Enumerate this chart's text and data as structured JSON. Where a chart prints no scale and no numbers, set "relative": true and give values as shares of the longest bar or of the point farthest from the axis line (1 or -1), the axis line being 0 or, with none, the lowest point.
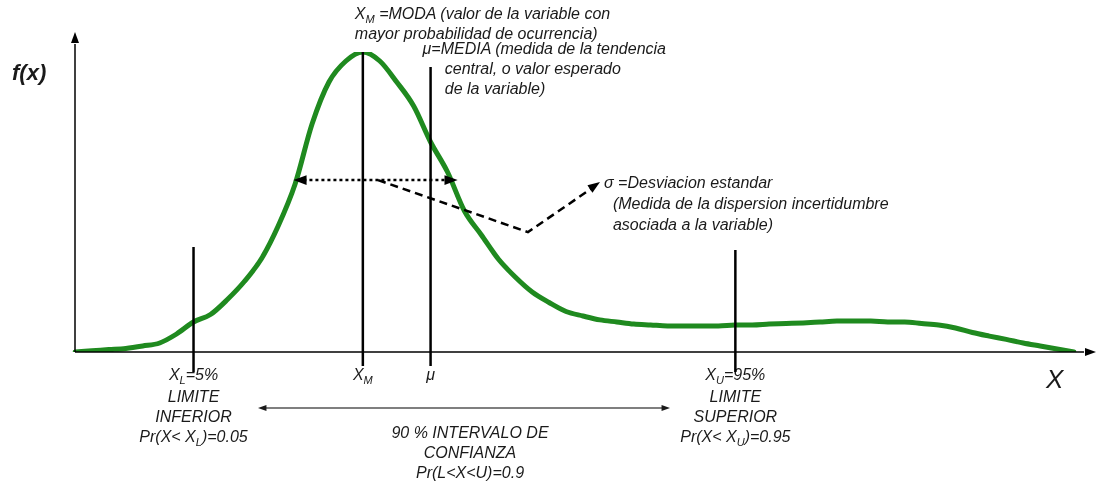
{
  "chart_data": {
    "type": "line",
    "relative": true,
    "categories": [
      null,
      null,
      null,
      null,
      null,
      null,
      null,
      "X$_{L}$=5%",
      null,
      null,
      null,
      null,
      null,
      null,
      null,
      null,
      null,
      "X$_{M}$",
      null,
      null,
      null,
      "μ",
      null,
      null,
      null,
      null,
      null,
      null,
      null,
      null,
      null,
      null,
      null,
      null,
      null,
      null,
      null,
      null,
      null,
      "X$_{U}$=95%",
      null,
      null,
      null,
      null,
      null,
      null,
      null,
      null,
      null,
      null,
      null,
      null,
      null,
      null,
      null,
      null,
      null,
      null,
      null,
      null
    ],
    "series": [
      {
        "color": "#1f8a1f",
        "values": [
          0,
          0.004,
          0.008,
          0.012,
          0.02,
          0.03,
          0.06,
          0.1,
          0.125,
          0.175,
          0.235,
          0.31,
          0.42,
          0.56,
          0.76,
          0.9,
          0.97,
          1,
          0.97,
          0.9,
          0.82,
          0.7,
          0.6,
          0.47,
          0.39,
          0.31,
          0.25,
          0.2,
          0.165,
          0.135,
          0.12,
          0.107,
          0.1,
          0.093,
          0.09,
          0.087,
          0.087,
          0.087,
          0.087,
          0.09,
          0.09,
          0.093,
          0.095,
          0.097,
          0.1,
          0.103,
          0.103,
          0.103,
          0.1,
          0.1,
          0.095,
          0.09,
          0.08,
          0.065,
          0.053,
          0.042,
          0.03,
          0.02,
          0.01,
          0
        ]
      }
    ],
    "xlabel": "X",
    "ylabel": "f(x)",
    "ref_lines": [
      {
        "axis": "x",
        "value": "X$_{L}$=5%",
        "label": "LIMITE\nINFERIOR\nPr(X< X$_{L}$)=0.05",
        "color": "#000000"
      },
      {
        "axis": "x",
        "value": "X$_{M}$",
        "label": "X$_{M}$ =MODA (valor de la variable con\nmayor probabilidad de ocurrencia)",
        "color": "#000000"
      },
      {
        "axis": "x",
        "value": "μ",
        "label": "μ=MEDIA (medida de la tendencia\n     central, o valor esperado\n     de la variable)",
        "color": "#000000"
      },
      {
        "axis": "x",
        "value": "X$_{U}$=95%",
        "label": "LIMITE\nSUPERIOR\nPr(X< X$_{U}$)=0.95",
        "color": "#000000"
      }
    ],
    "annotations": [
      "σ =Desviacion estandar\n  (Medida de la dispersion incertidumbre\n  asociada a la variable)",
      "90 % INTERVALO DE\nCONFIANZA\nPr(L<X<U)=0.9"
    ]
  }
}
